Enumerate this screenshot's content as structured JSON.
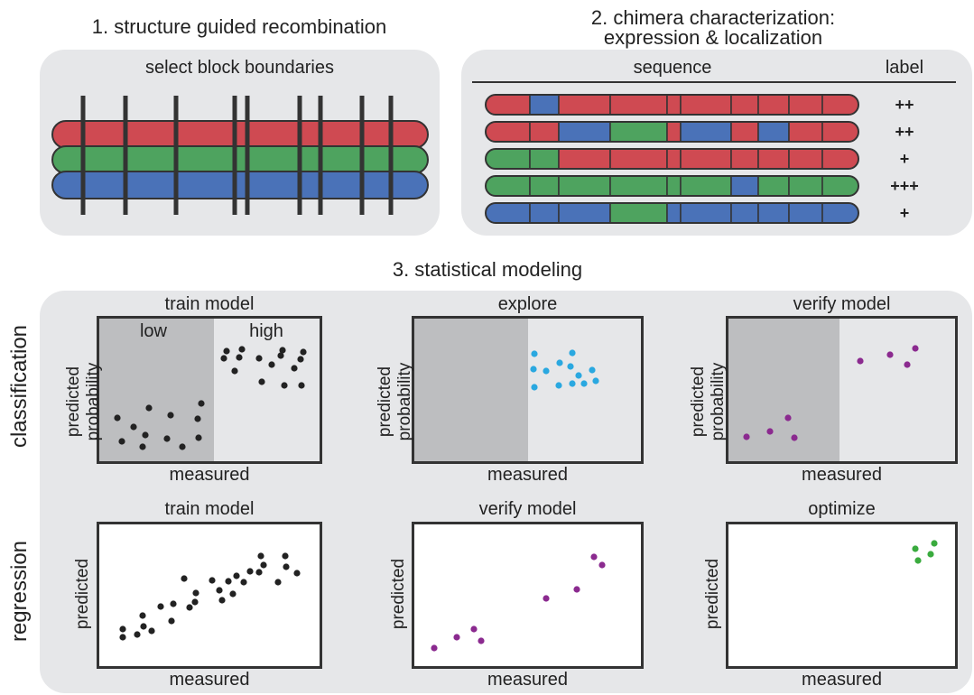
{
  "section1": {
    "title": "1. structure guided recombination",
    "subtitle": "select block boundaries",
    "strand_colors": [
      "#cf4a52",
      "#4ea35f",
      "#4a72b8"
    ]
  },
  "section2": {
    "title_line1": "2. chimera characterization:",
    "title_line2": "expression & localization",
    "col_sequence": "sequence",
    "col_label": "label",
    "rows": [
      {
        "blocks": [
          "R",
          "B",
          "R",
          "R",
          "R",
          "R",
          "R",
          "R",
          "R",
          "R"
        ],
        "label": "++"
      },
      {
        "blocks": [
          "R",
          "R",
          "B",
          "G",
          "R",
          "B",
          "R",
          "B",
          "R",
          "R"
        ],
        "label": "++"
      },
      {
        "blocks": [
          "G",
          "G",
          "R",
          "R",
          "R",
          "R",
          "R",
          "R",
          "R",
          "R"
        ],
        "label": "+"
      },
      {
        "blocks": [
          "G",
          "G",
          "G",
          "G",
          "G",
          "G",
          "B",
          "G",
          "G",
          "G"
        ],
        "label": "+++"
      },
      {
        "blocks": [
          "B",
          "B",
          "B",
          "G",
          "B",
          "B",
          "B",
          "B",
          "B",
          "B"
        ],
        "label": "+"
      }
    ],
    "colors": {
      "R": "#cf4a52",
      "G": "#4ea35f",
      "B": "#4a72b8"
    }
  },
  "section3": {
    "title": "3. statistical modeling",
    "row_labels": {
      "classification": "classification",
      "regression": "regression"
    },
    "classification_panels": [
      {
        "title": "train model",
        "ylabel_line1": "predicted",
        "ylabel_line2": "probability",
        "xlabel": "measured",
        "region_low": "low",
        "region_high": "high"
      },
      {
        "title": "explore",
        "ylabel_line1": "predicted",
        "ylabel_line2": "probability",
        "xlabel": "measured"
      },
      {
        "title": "verify model",
        "ylabel_line1": "predicted",
        "ylabel_line2": "probability",
        "xlabel": "measured"
      }
    ],
    "regression_panels": [
      {
        "title": "train model",
        "ylabel": "predicted",
        "xlabel": "measured"
      },
      {
        "title": "verify model",
        "ylabel": "predicted",
        "xlabel": "measured"
      },
      {
        "title": "optimize",
        "ylabel": "predicted",
        "xlabel": "measured"
      }
    ],
    "point_colors": {
      "train": "#222222",
      "explore": "#2aa8e0",
      "verify": "#8b2a8f",
      "optimize": "#3aab3e"
    }
  }
}
